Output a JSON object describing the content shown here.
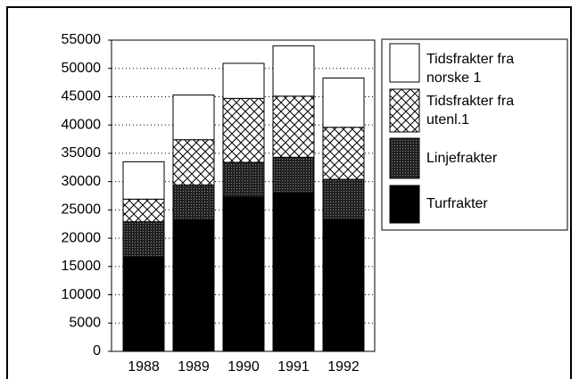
{
  "chart_data": {
    "type": "stacked_bar",
    "categories": [
      "1988",
      "1989",
      "1990",
      "1991",
      "1992"
    ],
    "series": [
      {
        "name": "Turfrakter",
        "color": "#000000",
        "pattern": "solid",
        "values": [
          16700,
          23200,
          27300,
          28000,
          23300
        ]
      },
      {
        "name": "Linjefrakter",
        "color": "#333333",
        "pattern": "dots",
        "values": [
          6200,
          6200,
          6100,
          6300,
          7100
        ]
      },
      {
        "name": "Tidsfrakter fra utenl.1",
        "color": "#000000",
        "pattern": "crosshatch",
        "values": [
          4000,
          8000,
          11300,
          10800,
          9200
        ]
      },
      {
        "name": "Tidsfrakter fra norske 1",
        "color": "#ffffff",
        "pattern": "none",
        "values": [
          6600,
          7900,
          6200,
          8900,
          8700
        ]
      }
    ],
    "ylim": [
      0,
      55000
    ],
    "yticks": [
      0,
      5000,
      10000,
      15000,
      20000,
      25000,
      30000,
      35000,
      40000,
      45000,
      50000,
      55000
    ],
    "grid": true,
    "legend": "right"
  }
}
